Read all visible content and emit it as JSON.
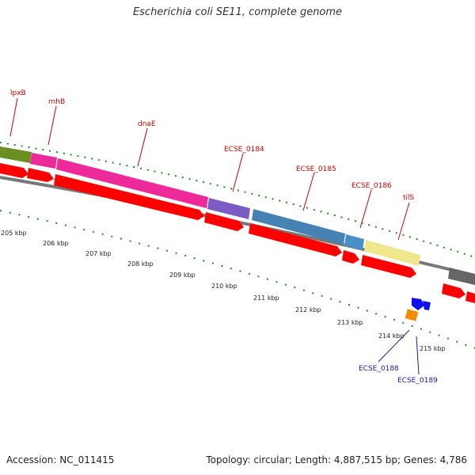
{
  "title": "Escherichia coli SE11, complete genome",
  "accession": "Accession: NC_011415",
  "summary": "Topology: circular; Length: 4,887,515 bp; Genes: 4,786",
  "gene_labels": [
    "lpxB",
    "rnhB",
    "dnaE",
    "ECSE_0184",
    "ECSE_0185",
    "ECSE_0186",
    "tilS",
    "ECSE_0188",
    "ECSE_0189"
  ],
  "kbp_ticks": [
    "205 kbp",
    "206 kbp",
    "207 kbp",
    "208 kbp",
    "209 kbp",
    "210 kbp",
    "211 kbp",
    "212 kbp",
    "213 kbp",
    "214 kbp",
    "215 kbp"
  ],
  "colors": {
    "label_red": "#cc0000",
    "label_blue": "#1a1aaa",
    "cds_red": "#ff0000",
    "tick_green": "#1e8c1e",
    "backbone_gray": "#888888"
  }
}
